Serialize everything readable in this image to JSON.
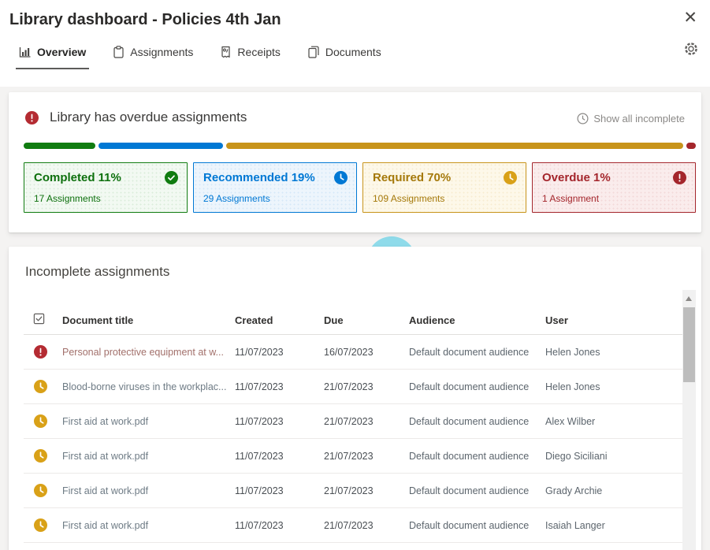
{
  "window": {
    "title": "Library dashboard - Policies 4th Jan"
  },
  "tabs": [
    {
      "label": "Overview",
      "icon": "bar-chart-icon",
      "active": true
    },
    {
      "label": "Assignments",
      "icon": "clipboard-icon",
      "active": false
    },
    {
      "label": "Receipts",
      "icon": "receipt-icon",
      "active": false
    },
    {
      "label": "Documents",
      "icon": "documents-icon",
      "active": false
    }
  ],
  "banner": {
    "message": "Library has overdue assignments",
    "action_label": "Show all incomplete",
    "progress_segments": [
      {
        "name": "completed",
        "percent": 11,
        "color": "#107C10"
      },
      {
        "name": "recommended",
        "percent": 19,
        "color": "#0078D4"
      },
      {
        "name": "required",
        "percent": 70,
        "color": "#C8941A"
      },
      {
        "name": "overdue",
        "percent": 1,
        "color": "#A4262C"
      }
    ],
    "cards": [
      {
        "title": "Completed 11%",
        "subtitle": "17 Assignments",
        "icon": "check-circle-icon",
        "color": "#107C10"
      },
      {
        "title": "Recommended 19%",
        "subtitle": "29 Assignments",
        "icon": "clock-icon",
        "color": "#0078D4"
      },
      {
        "title": "Required 70%",
        "subtitle": "109 Assignments",
        "icon": "clock-icon",
        "color": "#C8941A"
      },
      {
        "title": "Overdue 1%",
        "subtitle": "1 Assignment",
        "icon": "alert-circle-icon",
        "color": "#A4262C"
      }
    ]
  },
  "table_section": {
    "heading": "Incomplete assignments",
    "columns": [
      "Document title",
      "Created",
      "Due",
      "Audience",
      "User"
    ],
    "rows": [
      {
        "status": "overdue",
        "title": "Personal protective equipment at w...",
        "created": "11/07/2023",
        "due": "16/07/2023",
        "audience": "Default document audience",
        "user": "Helen Jones"
      },
      {
        "status": "pending",
        "title": "Blood-borne viruses in the workplac...",
        "created": "11/07/2023",
        "due": "21/07/2023",
        "audience": "Default document audience",
        "user": "Helen Jones"
      },
      {
        "status": "pending",
        "title": "First aid at work.pdf",
        "created": "11/07/2023",
        "due": "21/07/2023",
        "audience": "Default document audience",
        "user": "Alex Wilber"
      },
      {
        "status": "pending",
        "title": "First aid at work.pdf",
        "created": "11/07/2023",
        "due": "21/07/2023",
        "audience": "Default document audience",
        "user": "Diego Siciliani"
      },
      {
        "status": "pending",
        "title": "First aid at work.pdf",
        "created": "11/07/2023",
        "due": "21/07/2023",
        "audience": "Default document audience",
        "user": "Grady Archie"
      },
      {
        "status": "pending",
        "title": "First aid at work.pdf",
        "created": "11/07/2023",
        "due": "21/07/2023",
        "audience": "Default document audience",
        "user": "Isaiah Langer"
      }
    ]
  }
}
